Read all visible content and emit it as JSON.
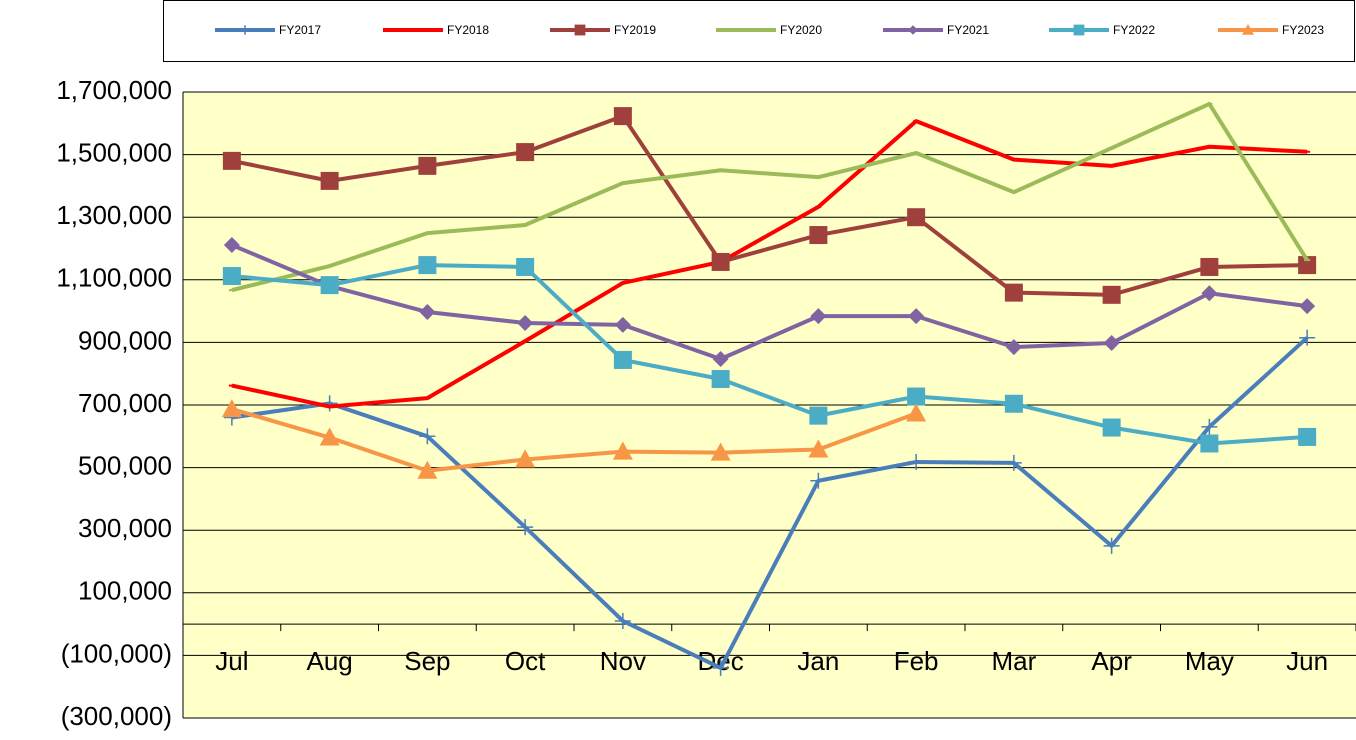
{
  "chart_data": {
    "type": "line",
    "categories": [
      "Jul",
      "Aug",
      "Sep",
      "Oct",
      "Nov",
      "Dec",
      "Jan",
      "Feb",
      "Mar",
      "Apr",
      "May",
      "Jun"
    ],
    "series": [
      {
        "name": "FY2017",
        "color": "#4a7ebb",
        "marker": "plus",
        "values": [
          660000,
          705000,
          600000,
          310000,
          10000,
          -140000,
          458000,
          518000,
          515000,
          250000,
          630000,
          915000
        ]
      },
      {
        "name": "FY2018",
        "color": "#ff0000",
        "marker": "dash",
        "values": [
          762000,
          695000,
          722000,
          904000,
          1090000,
          1157000,
          1333000,
          1607000,
          1484000,
          1464000,
          1525000,
          1509000
        ]
      },
      {
        "name": "FY2019",
        "color": "#a0403c",
        "marker": "square",
        "values": [
          1480000,
          1416000,
          1464000,
          1508000,
          1623000,
          1157000,
          1243000,
          1300000,
          1059000,
          1052000,
          1141000,
          1147000
        ]
      },
      {
        "name": "FY2020",
        "color": "#9bbb59",
        "marker": "dash",
        "values": [
          1067000,
          1144000,
          1249000,
          1275000,
          1409000,
          1450000,
          1428000,
          1505000,
          1380000,
          1521000,
          1662000,
          1163000
        ]
      },
      {
        "name": "FY2021",
        "color": "#8064a2",
        "marker": "diamond",
        "values": [
          1211000,
          1080000,
          997000,
          962000,
          956000,
          847000,
          984000,
          984000,
          885000,
          898000,
          1057000,
          1016000
        ]
      },
      {
        "name": "FY2022",
        "color": "#4bacc6",
        "marker": "square",
        "values": [
          1112000,
          1083000,
          1147000,
          1141000,
          844000,
          783000,
          666000,
          727000,
          704000,
          628000,
          577000,
          598000
        ]
      },
      {
        "name": "FY2023",
        "color": "#f79646",
        "marker": "triangle",
        "values": [
          687000,
          596000,
          490000,
          526000,
          551000,
          548000,
          558000,
          673000,
          null,
          null,
          null,
          null
        ]
      }
    ],
    "ylim": [
      -300000,
      1700000
    ],
    "yticks": [
      {
        "value": -300000,
        "label": "(300,000)"
      },
      {
        "value": -100000,
        "label": "(100,000)"
      },
      {
        "value": 100000,
        "label": "100,000"
      },
      {
        "value": 300000,
        "label": "300,000"
      },
      {
        "value": 500000,
        "label": "500,000"
      },
      {
        "value": 700000,
        "label": "700,000"
      },
      {
        "value": 900000,
        "label": "900,000"
      },
      {
        "value": 1100000,
        "label": "1,100,000"
      },
      {
        "value": 1300000,
        "label": "1,300,000"
      },
      {
        "value": 1500000,
        "label": "1,500,000"
      },
      {
        "value": 1700000,
        "label": "1,700,000"
      }
    ],
    "grid": true,
    "legend": "top",
    "plot_background": "#ffffc8"
  }
}
